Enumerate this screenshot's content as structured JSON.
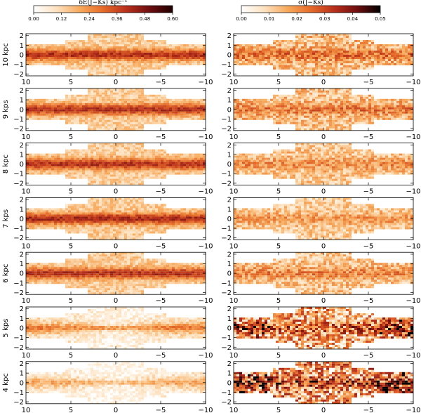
{
  "chart_data": {
    "type": "heatmap",
    "colorbars": [
      {
        "title": "δE(J−Ks) kpc⁻¹",
        "ticks": [
          "0.00",
          "0.12",
          "0.24",
          "0.36",
          "0.48",
          "0.60"
        ],
        "range": [
          0,
          0.6
        ],
        "colors": [
          "#ffffff",
          "#fde1bf",
          "#f7a95c",
          "#e56b2a",
          "#b8301b",
          "#6e0e10",
          "#200000"
        ]
      },
      {
        "title": "σ(J−Ks)",
        "ticks": [
          "0.00",
          "0.01",
          "0.02",
          "0.03",
          "0.04",
          "0.05"
        ],
        "range": [
          0,
          0.05
        ],
        "colors": [
          "#ffffff",
          "#fde1bf",
          "#f7a95c",
          "#e56b2a",
          "#b8301b",
          "#6e0e10",
          "#000000"
        ]
      }
    ],
    "x_ticks": [
      "10",
      "5",
      "0",
      "−5",
      "−10"
    ],
    "y_ticks": [
      "2",
      "1",
      "0",
      "−1",
      "−2"
    ],
    "xlim": [
      10,
      -10
    ],
    "ylim": [
      -2.2,
      2.2
    ],
    "distance_labels": [
      "10 kpc",
      "9 kps",
      "8 kpc",
      "7 kps",
      "6 kpc",
      "5 kps",
      "4 kpc"
    ],
    "left_panels_mean_level": [
      0.3,
      0.3,
      0.3,
      0.31,
      0.3,
      0.2,
      0.15
    ],
    "right_panels_mean_level": [
      0.02,
      0.019,
      0.017,
      0.016,
      0.018,
      0.022,
      0.025
    ],
    "distances_kpc": [
      10,
      9,
      8,
      7,
      6,
      5,
      4
    ]
  }
}
